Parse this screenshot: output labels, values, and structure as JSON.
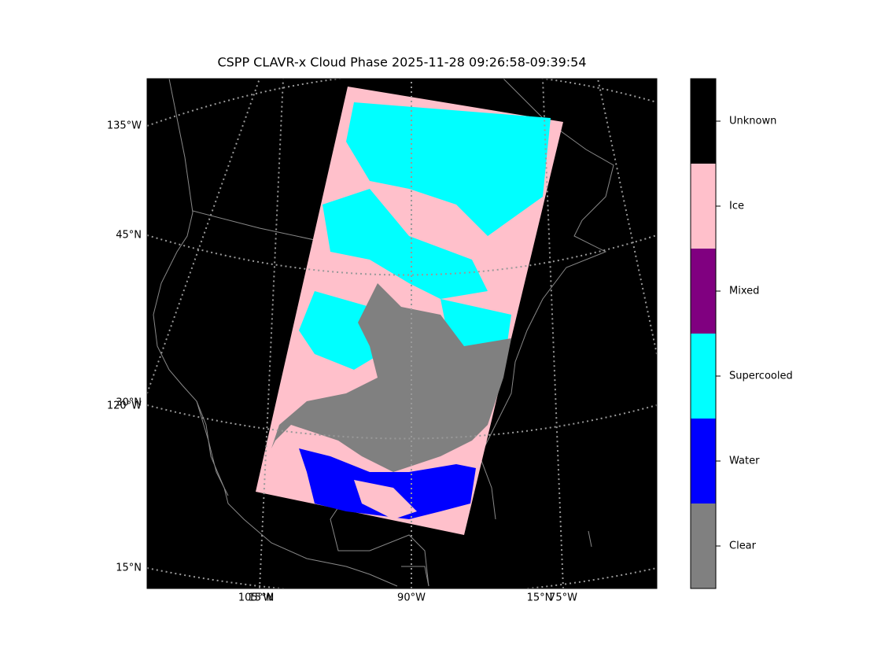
{
  "map": {
    "title": "CSPP CLAVR-x Cloud Phase 2025-11-28 09:26:58-09:39:54",
    "left_labels": [
      "135°W",
      "45°N",
      "30°N",
      "120°W",
      "15°N"
    ],
    "bottom_labels": [
      "105°W",
      "15°N",
      "90°W",
      "15°N",
      "75°W"
    ],
    "classes": [
      {
        "name": "Clear",
        "color": "#808080"
      },
      {
        "name": "Water",
        "color": "#0000ff"
      },
      {
        "name": "Supercooled",
        "color": "#00ffff"
      },
      {
        "name": "Mixed",
        "color": "#800080"
      },
      {
        "name": "Ice",
        "color": "#ffc0cb"
      },
      {
        "name": "Unknown",
        "color": "#000000"
      }
    ]
  }
}
